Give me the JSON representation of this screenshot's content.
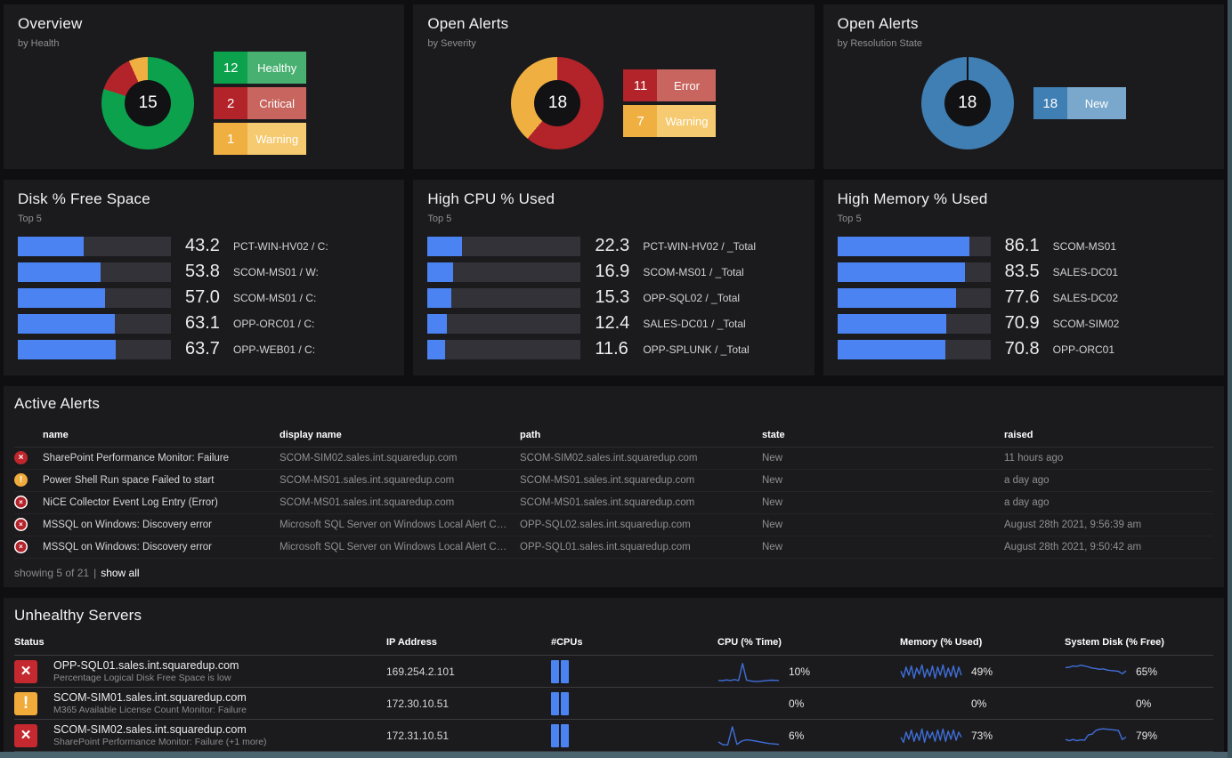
{
  "colors": {
    "accent_blue": "#4b84f2",
    "spark_blue": "#3f6ed8",
    "green": "#0ca24d",
    "green_light": "#48b171",
    "red": "#b3232a",
    "red_light": "#c8655f",
    "orange": "#f0b041",
    "orange_light": "#f5ca70",
    "blue": "#407fb4",
    "blue_light": "#7aa8cc",
    "critical_icon": "#c5282f",
    "warning_icon": "#f0ab3a",
    "edge_bottom": "#4b6470",
    "edge_right": "#3c535c"
  },
  "donuts": [
    {
      "title": "Overview",
      "subtitle": "by Health",
      "total": "15",
      "segments": [
        {
          "value": 12,
          "label": "Healthy",
          "color": "#0ca24d",
          "light": "#48b171"
        },
        {
          "value": 2,
          "label": "Critical",
          "color": "#b3232a",
          "light": "#c8655f"
        },
        {
          "value": 1,
          "label": "Warning",
          "color": "#f0b041",
          "light": "#f5ca70"
        }
      ]
    },
    {
      "title": "Open Alerts",
      "subtitle": "by Severity",
      "total": "18",
      "segments": [
        {
          "value": 11,
          "label": "Error",
          "color": "#b3232a",
          "light": "#c8655f"
        },
        {
          "value": 7,
          "label": "Warning",
          "color": "#f0b041",
          "light": "#f5ca70"
        }
      ]
    },
    {
      "title": "Open Alerts",
      "subtitle": "by Resolution State",
      "total": "18",
      "segments": [
        {
          "value": 18,
          "label": "New",
          "color": "#407fb4",
          "light": "#7aa8cc"
        }
      ]
    }
  ],
  "bar_panels": [
    {
      "title": "Disk % Free Space",
      "subtitle": "Top 5",
      "rows": [
        {
          "value": "43.2",
          "label": "PCT-WIN-HV02 / C:"
        },
        {
          "value": "53.8",
          "label": "SCOM-MS01 / W:"
        },
        {
          "value": "57.0",
          "label": "SCOM-MS01 / C:"
        },
        {
          "value": "63.1",
          "label": "OPP-ORC01 / C:"
        },
        {
          "value": "63.7",
          "label": "OPP-WEB01 / C:"
        }
      ]
    },
    {
      "title": "High CPU % Used",
      "subtitle": "Top 5",
      "rows": [
        {
          "value": "22.3",
          "label": "PCT-WIN-HV02 / _Total"
        },
        {
          "value": "16.9",
          "label": "SCOM-MS01 / _Total"
        },
        {
          "value": "15.3",
          "label": "OPP-SQL02 / _Total"
        },
        {
          "value": "12.4",
          "label": "SALES-DC01 / _Total"
        },
        {
          "value": "11.6",
          "label": "OPP-SPLUNK / _Total"
        }
      ]
    },
    {
      "title": "High Memory % Used",
      "subtitle": "Top 5",
      "rows": [
        {
          "value": "86.1",
          "label": "SCOM-MS01"
        },
        {
          "value": "83.5",
          "label": "SALES-DC01"
        },
        {
          "value": "77.6",
          "label": "SALES-DC02"
        },
        {
          "value": "70.9",
          "label": "SCOM-SIM02"
        },
        {
          "value": "70.8",
          "label": "OPP-ORC01"
        }
      ]
    }
  ],
  "active_alerts": {
    "title": "Active Alerts",
    "columns": [
      "name",
      "display name",
      "path",
      "state",
      "raised"
    ],
    "rows": [
      {
        "icon": "critical",
        "name": "SharePoint Performance Monitor: Failure",
        "display": "SCOM-SIM02.sales.int.squaredup.com",
        "path": "SCOM-SIM02.sales.int.squaredup.com",
        "state": "New",
        "raised": "11 hours ago"
      },
      {
        "icon": "warning",
        "name": "Power Shell Run space Failed to start",
        "display": "SCOM-MS01.sales.int.squaredup.com",
        "path": "SCOM-MS01.sales.int.squaredup.com",
        "state": "New",
        "raised": "a day ago"
      },
      {
        "icon": "error",
        "name": "NiCE Collector Event Log Entry (Error)",
        "display": "SCOM-MS01.sales.int.squaredup.com",
        "path": "SCOM-MS01.sales.int.squaredup.com",
        "state": "New",
        "raised": "a day ago"
      },
      {
        "icon": "error",
        "name": "MSSQL on Windows: Discovery error",
        "display": "Microsoft SQL Server on Windows Local Alert Collection (...",
        "path": "OPP-SQL02.sales.int.squaredup.com",
        "state": "New",
        "raised": "August 28th 2021, 9:56:39 am"
      },
      {
        "icon": "error",
        "name": "MSSQL on Windows: Discovery error",
        "display": "Microsoft SQL Server on Windows Local Alert Collection (...",
        "path": "OPP-SQL01.sales.int.squaredup.com",
        "state": "New",
        "raised": "August 28th 2021, 9:50:42 am"
      }
    ],
    "footer": {
      "showing": "showing 5 of 21",
      "separator": "|",
      "show_all": "show all"
    }
  },
  "unhealthy": {
    "title": "Unhealthy Servers",
    "columns": [
      "Status",
      "IP Address",
      "#CPUs",
      "CPU (% Time)",
      "Memory (% Used)",
      "System Disk (% Free)"
    ],
    "rows": [
      {
        "icon": "critical",
        "server": "OPP-SQL01.sales.int.squaredup.com",
        "detail": "Percentage Logical Disk Free Space is low",
        "ip": "169.254.2.101",
        "cpus": 2,
        "cpu_pct": "10%",
        "mem_pct": "49%",
        "disk_pct": "65%",
        "cpu_spark": [
          10,
          8,
          12,
          9,
          14,
          9,
          92,
          11,
          7,
          5,
          5,
          7,
          9,
          11,
          10,
          9
        ],
        "mem_spark": [
          55,
          25,
          75,
          35,
          80,
          20,
          70,
          40,
          85,
          25,
          65,
          30,
          80,
          20,
          75,
          35,
          85,
          25,
          70,
          30,
          80,
          25,
          75,
          35
        ],
        "disk_spark": [
          72,
          74,
          80,
          78,
          84,
          80,
          76,
          70,
          68,
          64,
          66,
          60,
          58,
          56,
          54,
          42,
          56
        ]
      },
      {
        "icon": "warning",
        "server": "SCOM-SIM01.sales.int.squaredup.com",
        "detail": "M365 Available License Count Monitor: Failure",
        "ip": "172.30.10.51",
        "cpus": 2,
        "cpu_pct": "0%",
        "mem_pct": "0%",
        "disk_pct": "0%",
        "cpu_spark": [],
        "mem_spark": [],
        "disk_spark": []
      },
      {
        "icon": "critical",
        "server": "SCOM-SIM02.sales.int.squaredup.com",
        "detail": "SharePoint Performance Monitor: Failure (+1 more)",
        "ip": "172.31.10.51",
        "cpus": 2,
        "cpu_pct": "6%",
        "mem_pct": "73%",
        "disk_pct": "79%",
        "cpu_spark": [
          22,
          8,
          8,
          96,
          10,
          26,
          32,
          30,
          26,
          22,
          18,
          14,
          12,
          10
        ],
        "mem_spark": [
          45,
          20,
          70,
          35,
          80,
          25,
          65,
          30,
          85,
          20,
          75,
          40,
          70,
          25,
          80,
          30,
          85,
          25,
          75,
          35,
          80,
          30,
          70,
          45
        ],
        "disk_spark": [
          34,
          28,
          34,
          28,
          32,
          30,
          56,
          60,
          78,
          84,
          86,
          84,
          82,
          80,
          78,
          34,
          46
        ]
      }
    ]
  },
  "chart_data": [
    {
      "type": "pie",
      "title": "Overview by Health",
      "labels": [
        "Healthy",
        "Critical",
        "Warning"
      ],
      "values": [
        12,
        2,
        1
      ],
      "center_total": 15
    },
    {
      "type": "pie",
      "title": "Open Alerts by Severity",
      "labels": [
        "Error",
        "Warning"
      ],
      "values": [
        11,
        7
      ],
      "center_total": 18
    },
    {
      "type": "pie",
      "title": "Open Alerts by Resolution State",
      "labels": [
        "New"
      ],
      "values": [
        18
      ],
      "center_total": 18
    },
    {
      "type": "bar",
      "title": "Disk % Free Space (Top 5)",
      "categories": [
        "PCT-WIN-HV02 / C:",
        "SCOM-MS01 / W:",
        "SCOM-MS01 / C:",
        "OPP-ORC01 / C:",
        "OPP-WEB01 / C:"
      ],
      "values": [
        43.2,
        53.8,
        57.0,
        63.1,
        63.7
      ],
      "xlim": [
        0,
        100
      ]
    },
    {
      "type": "bar",
      "title": "High CPU % Used (Top 5)",
      "categories": [
        "PCT-WIN-HV02 / _Total",
        "SCOM-MS01 / _Total",
        "OPP-SQL02 / _Total",
        "SALES-DC01 / _Total",
        "OPP-SPLUNK / _Total"
      ],
      "values": [
        22.3,
        16.9,
        15.3,
        12.4,
        11.6
      ],
      "xlim": [
        0,
        100
      ]
    },
    {
      "type": "bar",
      "title": "High Memory % Used (Top 5)",
      "categories": [
        "SCOM-MS01",
        "SALES-DC01",
        "SALES-DC02",
        "SCOM-SIM02",
        "OPP-ORC01"
      ],
      "values": [
        86.1,
        83.5,
        77.6,
        70.9,
        70.8
      ],
      "xlim": [
        0,
        100
      ]
    }
  ]
}
